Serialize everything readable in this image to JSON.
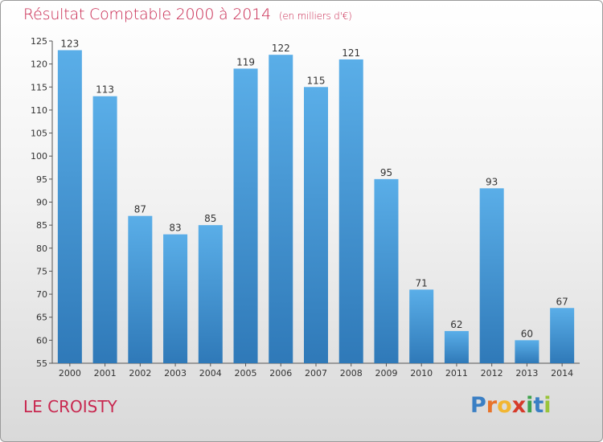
{
  "title": "Résultat Comptable 2000 à 2014",
  "subtitle": "(en milliers d'€)",
  "commune": "LE CROISTY",
  "logo": {
    "text": "Proxiti",
    "letters": [
      "P",
      "r",
      "o",
      "x",
      "i",
      "t",
      "i"
    ],
    "colors": [
      "#3a7fc4",
      "#e8732a",
      "#f2b632",
      "#d63a2a",
      "#3fa34d",
      "#3a7fc4",
      "#9ac43a"
    ]
  },
  "colors": {
    "bar_top": "#5aaee8",
    "bar_bottom": "#2f79b8",
    "title": "#c8274f"
  },
  "chart_data": {
    "type": "bar",
    "categories": [
      "2000",
      "2001",
      "2002",
      "2003",
      "2004",
      "2005",
      "2006",
      "2007",
      "2008",
      "2009",
      "2010",
      "2011",
      "2012",
      "2013",
      "2014"
    ],
    "values": [
      123,
      113,
      87,
      83,
      85,
      119,
      122,
      115,
      121,
      95,
      71,
      62,
      93,
      60,
      67
    ],
    "title": "Résultat Comptable 2000 à 2014",
    "xlabel": "",
    "ylabel": "",
    "ylim": [
      55,
      125
    ],
    "yticks": [
      55,
      60,
      65,
      70,
      75,
      80,
      85,
      90,
      95,
      100,
      105,
      110,
      115,
      120,
      125
    ],
    "grid": false
  }
}
